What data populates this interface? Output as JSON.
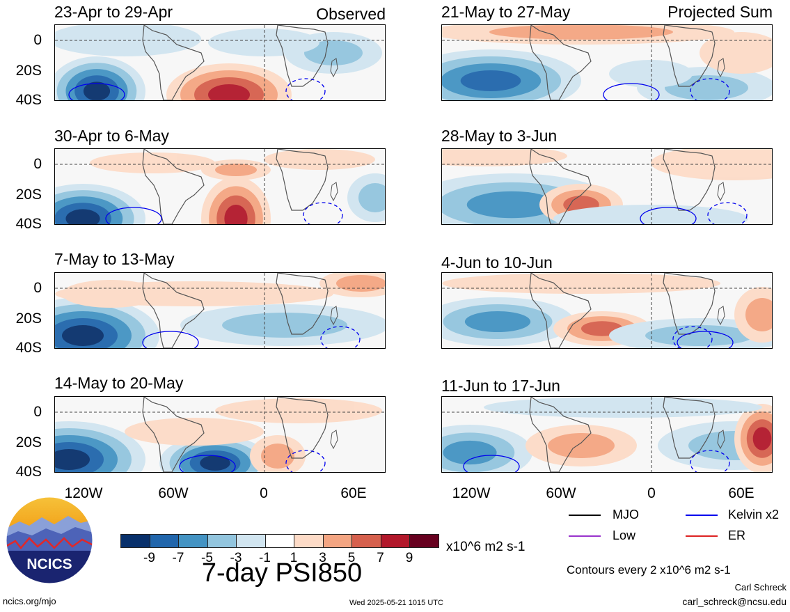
{
  "panels": {
    "observed_label": "Observed",
    "projected_label": "Projected Sum",
    "left": [
      {
        "title": "23-Apr to 29-Apr"
      },
      {
        "title": "30-Apr to 6-May"
      },
      {
        "title": "7-May to 13-May"
      },
      {
        "title": "14-May to 20-May"
      }
    ],
    "right": [
      {
        "title": "21-May to 27-May"
      },
      {
        "title": "28-May to 3-Jun"
      },
      {
        "title": "4-Jun to 10-Jun"
      },
      {
        "title": "11-Jun to 17-Jun"
      }
    ]
  },
  "axes": {
    "lat_ticks": [
      "0",
      "20S",
      "40S"
    ],
    "lon_ticks": [
      "120W",
      "60W",
      "0",
      "60E"
    ]
  },
  "colorbar": {
    "colors": [
      "#08306b",
      "#2166ac",
      "#4393c3",
      "#92c5de",
      "#d1e5f0",
      "#ffffff",
      "#fddbc7",
      "#f4a582",
      "#d6604d",
      "#b2182b",
      "#67001f"
    ],
    "labels": [
      "-9",
      "-7",
      "-5",
      "-3",
      "-1",
      "1",
      "3",
      "5",
      "7",
      "9"
    ],
    "units": "x10^6 m2 s-1",
    "title": "7-day PSI850"
  },
  "legend": {
    "items": [
      {
        "label": "MJO",
        "color": "#000000"
      },
      {
        "label": "Kelvin x2",
        "color": "#0000ee"
      },
      {
        "label": "Low",
        "color": "#9933cc"
      },
      {
        "label": "ER",
        "color": "#dd2222"
      }
    ],
    "contour_note": "Contours every 2 x10^6 m2 s-1"
  },
  "logo": {
    "text": "NCICS"
  },
  "footer": {
    "url": "ncics.org/mjo",
    "timestamp": "Wed 2025-05-21 1015 UTC",
    "author": "Carl Schreck",
    "email": "carl_schreck@ncsu.edu"
  }
}
